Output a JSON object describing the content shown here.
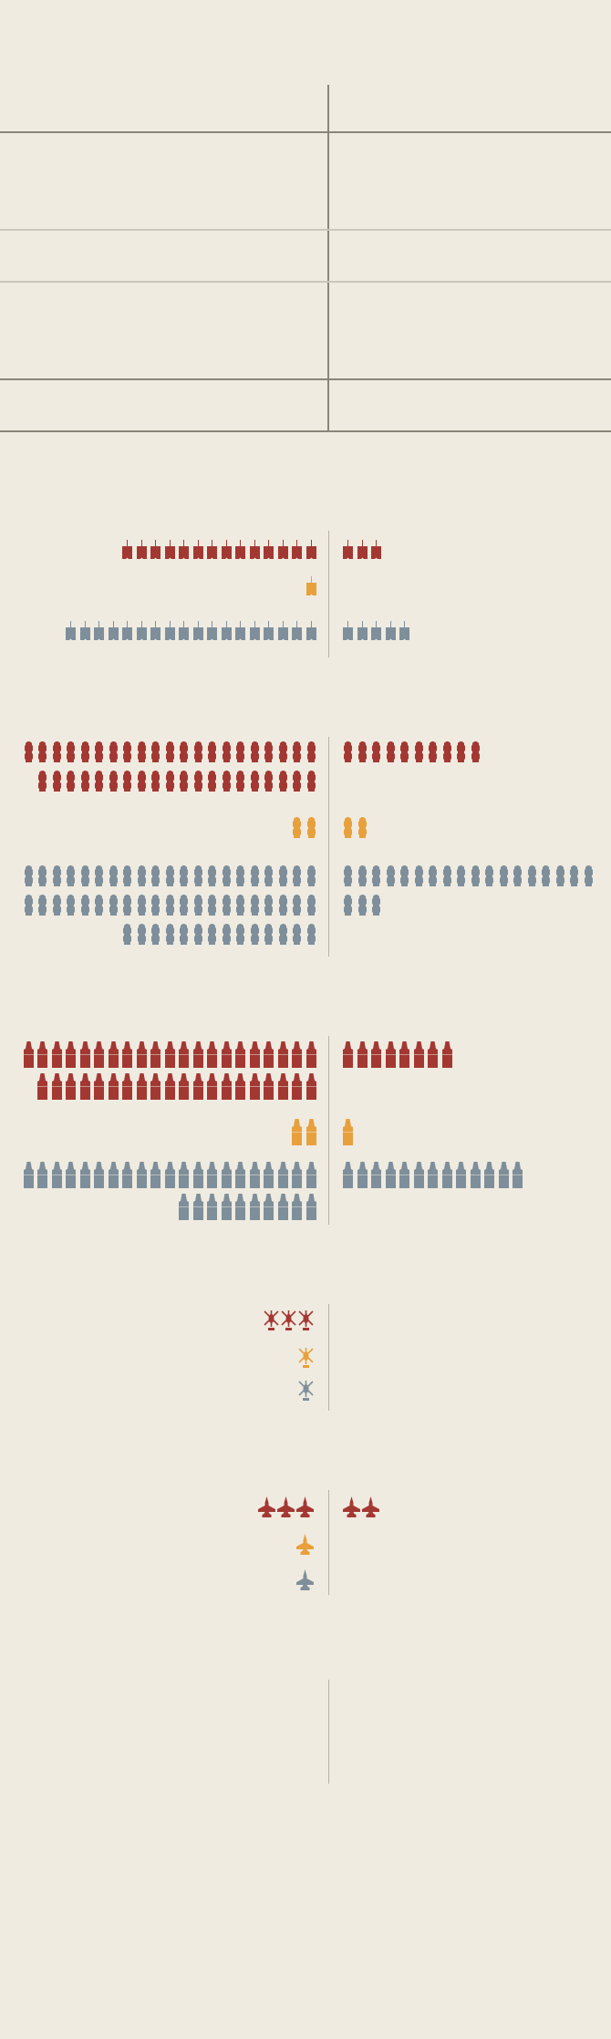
{
  "colors": {
    "background": "#f0ebe0",
    "red": "#a33833",
    "orange": "#e8a03c",
    "grey": "#7e8f9b",
    "rule": "#8a8578",
    "rule_light": "#cbc6b9"
  },
  "chart_data": {
    "type": "pictogram",
    "groups": [
      "red",
      "orange",
      "grey"
    ],
    "sections": [
      {
        "icon": "tank-icon",
        "counts": {
          "red": [
            14,
            3
          ],
          "orange": [
            1,
            0
          ],
          "grey": [
            18,
            5
          ]
        }
      },
      {
        "icon": "armored-vehicle-icon",
        "counts": {
          "red": [
            41,
            10
          ],
          "orange": [
            2,
            2
          ],
          "grey": [
            56,
            21
          ]
        }
      },
      {
        "icon": "artillery-icon",
        "counts": {
          "red": [
            41,
            8
          ],
          "orange": [
            2,
            1
          ],
          "grey": [
            31,
            13
          ]
        }
      },
      {
        "icon": "helicopter-icon",
        "counts": {
          "red": [
            3,
            0
          ],
          "orange": [
            1,
            0
          ],
          "grey": [
            1,
            0
          ]
        }
      },
      {
        "icon": "fighter-jet-icon",
        "counts": {
          "red": [
            3,
            2
          ],
          "orange": [
            1,
            0
          ],
          "grey": [
            1,
            0
          ]
        }
      },
      {
        "icon": "none",
        "counts": {}
      }
    ]
  }
}
